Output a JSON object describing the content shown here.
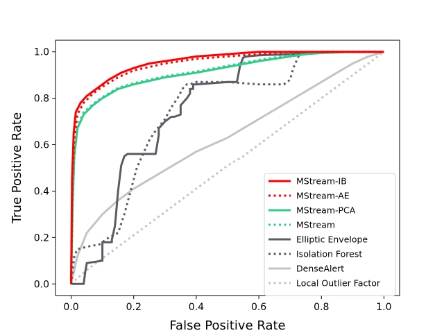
{
  "chart_data": {
    "type": "line",
    "title": "",
    "xlabel": "False Positive Rate",
    "ylabel": "True Positive Rate",
    "xlim": [
      -0.05,
      1.05
    ],
    "ylim": [
      -0.05,
      1.05
    ],
    "xticks": [
      "0.0",
      "0.2",
      "0.4",
      "0.6",
      "0.8",
      "1.0"
    ],
    "yticks": [
      "0.0",
      "0.2",
      "0.4",
      "0.6",
      "0.8",
      "1.0"
    ],
    "grid": false,
    "legend_position": "lower-right",
    "series": [
      {
        "name": "MStream-IB",
        "color": "#ff0000",
        "style": "solid",
        "x": [
          0,
          0.003,
          0.008,
          0.015,
          0.03,
          0.05,
          0.08,
          0.12,
          0.16,
          0.2,
          0.25,
          0.3,
          0.35,
          0.4,
          0.45,
          0.5,
          0.55,
          0.6,
          0.7,
          0.8,
          1.0
        ],
        "y": [
          0,
          0.45,
          0.65,
          0.74,
          0.78,
          0.81,
          0.84,
          0.88,
          0.91,
          0.93,
          0.95,
          0.96,
          0.97,
          0.98,
          0.985,
          0.99,
          0.995,
          1.0,
          1.0,
          1.0,
          1.0
        ]
      },
      {
        "name": "MStream-AE",
        "color": "#ff0000",
        "style": "dotted",
        "x": [
          0,
          0.004,
          0.01,
          0.02,
          0.04,
          0.07,
          0.1,
          0.15,
          0.2,
          0.25,
          0.3,
          0.35,
          0.4,
          0.45,
          0.5,
          0.55,
          0.6,
          0.65,
          0.7,
          0.8,
          1.0
        ],
        "y": [
          0,
          0.45,
          0.63,
          0.73,
          0.78,
          0.82,
          0.85,
          0.89,
          0.92,
          0.935,
          0.95,
          0.96,
          0.97,
          0.975,
          0.98,
          0.985,
          0.99,
          0.995,
          1.0,
          1.0,
          1.0
        ]
      },
      {
        "name": "MStream-PCA",
        "color": "#2ecc86",
        "style": "solid",
        "x": [
          0,
          0.005,
          0.01,
          0.02,
          0.04,
          0.07,
          0.1,
          0.15,
          0.2,
          0.3,
          0.4,
          0.5,
          0.6,
          0.7,
          0.75,
          0.8,
          0.9,
          1.0
        ],
        "y": [
          0,
          0.35,
          0.55,
          0.67,
          0.73,
          0.77,
          0.8,
          0.84,
          0.86,
          0.89,
          0.91,
          0.935,
          0.96,
          0.98,
          0.99,
          0.995,
          1.0,
          1.0
        ]
      },
      {
        "name": "MStream",
        "color": "#2ecc86",
        "style": "dotted",
        "x": [
          0,
          0.005,
          0.01,
          0.02,
          0.04,
          0.07,
          0.1,
          0.15,
          0.2,
          0.3,
          0.4,
          0.5,
          0.6,
          0.7,
          0.75,
          0.8,
          0.9,
          1.0
        ],
        "y": [
          0,
          0.36,
          0.56,
          0.68,
          0.74,
          0.775,
          0.805,
          0.845,
          0.865,
          0.895,
          0.915,
          0.94,
          0.965,
          0.985,
          0.99,
          0.995,
          1.0,
          1.0
        ]
      },
      {
        "name": "Elliptic Envelope",
        "color": "#5a5c63",
        "style": "solid",
        "x": [
          0,
          0.0,
          0.04,
          0.045,
          0.05,
          0.1,
          0.1,
          0.13,
          0.13,
          0.14,
          0.15,
          0.16,
          0.17,
          0.18,
          0.2,
          0.27,
          0.28,
          0.28,
          0.3,
          0.32,
          0.33,
          0.35,
          0.35,
          0.37,
          0.38,
          0.38,
          0.39,
          0.39,
          0.4,
          0.5,
          0.53,
          0.54,
          0.55,
          0.56,
          0.6,
          0.7,
          0.8,
          1.0
        ],
        "y": [
          0,
          0.0,
          0.0,
          0.05,
          0.09,
          0.1,
          0.18,
          0.18,
          0.19,
          0.25,
          0.4,
          0.51,
          0.55,
          0.56,
          0.56,
          0.56,
          0.64,
          0.67,
          0.7,
          0.72,
          0.72,
          0.73,
          0.77,
          0.8,
          0.82,
          0.84,
          0.84,
          0.86,
          0.86,
          0.87,
          0.87,
          0.94,
          0.975,
          0.98,
          0.985,
          0.99,
          1.0,
          1.0
        ]
      },
      {
        "name": "Isolation Forest",
        "color": "#5a5c63",
        "style": "dotted",
        "x": [
          0,
          0.01,
          0.02,
          0.05,
          0.09,
          0.12,
          0.15,
          0.17,
          0.19,
          0.21,
          0.23,
          0.25,
          0.27,
          0.3,
          0.32,
          0.34,
          0.36,
          0.37,
          0.38,
          0.4,
          0.5,
          0.6,
          0.68,
          0.7,
          0.71,
          0.72,
          0.73,
          0.8,
          1.0
        ],
        "y": [
          0,
          0.12,
          0.15,
          0.16,
          0.17,
          0.2,
          0.22,
          0.3,
          0.4,
          0.5,
          0.56,
          0.62,
          0.66,
          0.71,
          0.76,
          0.8,
          0.85,
          0.86,
          0.86,
          0.87,
          0.87,
          0.86,
          0.86,
          0.88,
          0.93,
          0.96,
          0.99,
          1.0,
          1.0
        ]
      },
      {
        "name": "DenseAlert",
        "color": "#c4c4c4",
        "style": "solid",
        "x": [
          0,
          0.02,
          0.05,
          0.1,
          0.15,
          0.2,
          0.25,
          0.3,
          0.35,
          0.4,
          0.45,
          0.5,
          0.55,
          0.6,
          0.65,
          0.7,
          0.75,
          0.8,
          0.85,
          0.9,
          0.95,
          1.0
        ],
        "y": [
          0,
          0.12,
          0.22,
          0.3,
          0.36,
          0.41,
          0.45,
          0.49,
          0.53,
          0.57,
          0.6,
          0.63,
          0.67,
          0.71,
          0.75,
          0.79,
          0.83,
          0.87,
          0.91,
          0.95,
          0.98,
          1.0
        ]
      },
      {
        "name": "Local Outlier Factor",
        "color": "#c4c4c4",
        "style": "dotted",
        "x": [
          0,
          0.05,
          0.1,
          0.15,
          0.2,
          0.25,
          0.3,
          0.35,
          0.4,
          0.45,
          0.5,
          0.55,
          0.6,
          0.65,
          0.7,
          0.75,
          0.8,
          0.85,
          0.9,
          0.95,
          1.0
        ],
        "y": [
          0,
          0.06,
          0.11,
          0.16,
          0.21,
          0.26,
          0.31,
          0.36,
          0.41,
          0.46,
          0.51,
          0.55,
          0.6,
          0.65,
          0.7,
          0.75,
          0.8,
          0.85,
          0.9,
          0.95,
          1.0
        ]
      }
    ]
  }
}
